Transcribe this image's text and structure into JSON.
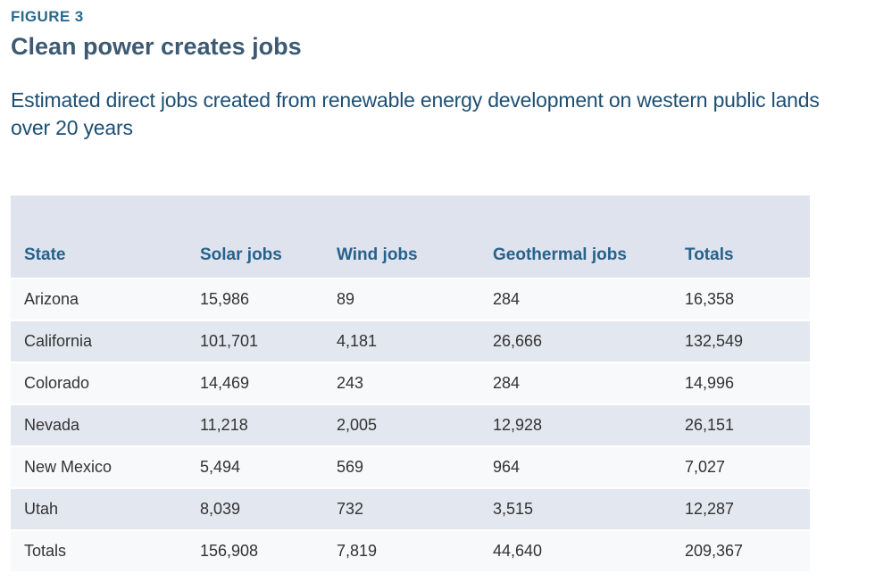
{
  "figure": {
    "label": "FIGURE 3",
    "title": "Clean power creates jobs",
    "subtitle": "Estimated direct jobs created from renewable energy development on western public lands over 20 years"
  },
  "chart_data": {
    "type": "table",
    "title": "Clean power creates jobs",
    "subtitle": "Estimated direct jobs created from renewable energy development on western public lands over 20 years",
    "columns": [
      "State",
      "Solar jobs",
      "Wind jobs",
      "Geothermal jobs",
      "Totals"
    ],
    "rows": [
      [
        "Arizona",
        "15,986",
        "89",
        "284",
        "16,358"
      ],
      [
        "California",
        "101,701",
        "4,181",
        "26,666",
        "132,549"
      ],
      [
        "Colorado",
        "14,469",
        "243",
        "284",
        "14,996"
      ],
      [
        "Nevada",
        "11,218",
        "2,005",
        "12,928",
        "26,151"
      ],
      [
        "New Mexico",
        "5,494",
        "569",
        "964",
        "7,027"
      ],
      [
        "Utah",
        "8,039",
        "732",
        "3,515",
        "12,287"
      ],
      [
        "Totals",
        "156,908",
        "7,819",
        "44,640",
        "209,367"
      ]
    ],
    "numeric": {
      "states": [
        "Arizona",
        "California",
        "Colorado",
        "Nevada",
        "New Mexico",
        "Utah"
      ],
      "series": [
        {
          "name": "Solar jobs",
          "values": [
            15986,
            101701,
            14469,
            11218,
            5494,
            8039
          ],
          "total": 156908
        },
        {
          "name": "Wind jobs",
          "values": [
            89,
            4181,
            243,
            2005,
            569,
            732
          ],
          "total": 7819
        },
        {
          "name": "Geothermal jobs",
          "values": [
            284,
            26666,
            284,
            12928,
            964,
            3515
          ],
          "total": 44640
        }
      ],
      "row_totals": [
        16358,
        132549,
        14996,
        26151,
        7027,
        12287
      ],
      "grand_total": 209367
    }
  },
  "colors": {
    "figure_label": "#2b6a8c",
    "title": "#3d5a74",
    "subtitle": "#1d4f72",
    "header_bg": "#dfe3ee",
    "header_text": "#26628c",
    "row_shaded_bg": "#e3e7f0",
    "row_light_bg": "#f7f9fb",
    "body_text": "#333333",
    "background": "#ffffff"
  }
}
